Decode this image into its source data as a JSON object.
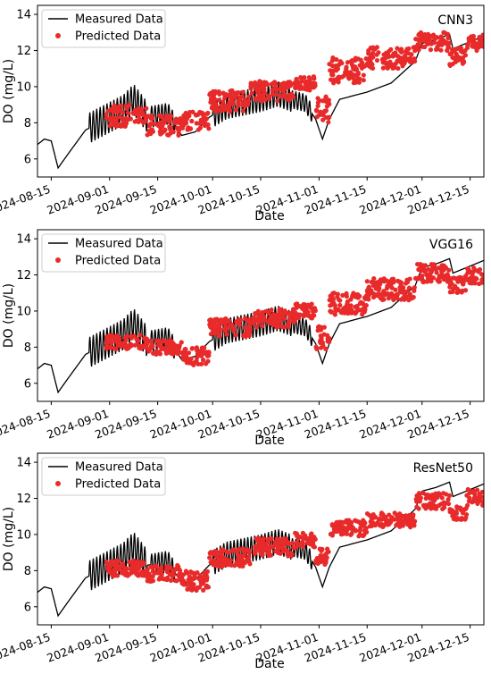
{
  "chart_data": [
    {
      "type": "line+scatter",
      "model_label": "CNN3",
      "xlabel": "Date",
      "ylabel": "DO (mg/L)",
      "xlim": [
        "2024-08-11",
        "2024-12-19"
      ],
      "ylim": [
        5,
        14.5
      ],
      "x_ticks": [
        "2024-08-15",
        "2024-09-01",
        "2024-09-15",
        "2024-10-01",
        "2024-10-15",
        "2024-11-01",
        "2024-11-15",
        "2024-12-01",
        "2024-12-15"
      ],
      "y_ticks": [
        6,
        8,
        10,
        12,
        14
      ],
      "legend": [
        "Measured Data",
        "Predicted Data"
      ],
      "legend_position": "upper-left",
      "grid": false,
      "colors": {
        "measured": "#000000",
        "predicted": "#e82a2a"
      },
      "predicted_bands": [
        {
          "x": [
            "2024-08-31",
            "2024-09-07"
          ],
          "y": [
            7.8,
            9.0
          ]
        },
        {
          "x": [
            "2024-09-07",
            "2024-09-12"
          ],
          "y": [
            8.0,
            8.8
          ]
        },
        {
          "x": [
            "2024-09-12",
            "2024-09-22"
          ],
          "y": [
            7.3,
            8.4
          ]
        },
        {
          "x": [
            "2024-09-22",
            "2024-09-30"
          ],
          "y": [
            7.6,
            8.6
          ]
        },
        {
          "x": [
            "2024-09-30",
            "2024-10-12"
          ],
          "y": [
            8.6,
            9.8
          ]
        },
        {
          "x": [
            "2024-10-12",
            "2024-10-25"
          ],
          "y": [
            9.2,
            10.3
          ]
        },
        {
          "x": [
            "2024-10-25",
            "2024-10-31"
          ],
          "y": [
            9.8,
            10.6
          ]
        },
        {
          "x": [
            "2024-10-31",
            "2024-11-04"
          ],
          "y": [
            8.0,
            9.5
          ]
        },
        {
          "x": [
            "2024-11-04",
            "2024-11-15"
          ],
          "y": [
            10.2,
            11.6
          ]
        },
        {
          "x": [
            "2024-11-15",
            "2024-11-29"
          ],
          "y": [
            11.0,
            12.2
          ]
        },
        {
          "x": [
            "2024-11-29",
            "2024-12-09"
          ],
          "y": [
            12.0,
            13.0
          ]
        },
        {
          "x": [
            "2024-12-09",
            "2024-12-14"
          ],
          "y": [
            11.0,
            12.2
          ]
        },
        {
          "x": [
            "2024-12-14",
            "2024-12-19"
          ],
          "y": [
            12.0,
            12.9
          ]
        }
      ]
    },
    {
      "type": "line+scatter",
      "model_label": "VGG16",
      "xlabel": "Date",
      "ylabel": "DO (mg/L)",
      "xlim": [
        "2024-08-11",
        "2024-12-19"
      ],
      "ylim": [
        5,
        14.5
      ],
      "x_ticks": [
        "2024-08-15",
        "2024-09-01",
        "2024-09-15",
        "2024-10-01",
        "2024-10-15",
        "2024-11-01",
        "2024-11-15",
        "2024-12-01",
        "2024-12-15"
      ],
      "y_ticks": [
        6,
        8,
        10,
        12,
        14
      ],
      "legend": [
        "Measured Data",
        "Predicted Data"
      ],
      "legend_position": "upper-left",
      "grid": false,
      "colors": {
        "measured": "#000000",
        "predicted": "#e82a2a"
      },
      "predicted_bands": [
        {
          "x": [
            "2024-08-31",
            "2024-09-12"
          ],
          "y": [
            7.9,
            8.7
          ]
        },
        {
          "x": [
            "2024-09-12",
            "2024-09-22"
          ],
          "y": [
            7.6,
            8.4
          ]
        },
        {
          "x": [
            "2024-09-22",
            "2024-09-30"
          ],
          "y": [
            7.0,
            8.0
          ]
        },
        {
          "x": [
            "2024-09-30",
            "2024-10-12"
          ],
          "y": [
            8.6,
            9.6
          ]
        },
        {
          "x": [
            "2024-10-12",
            "2024-10-25"
          ],
          "y": [
            9.1,
            10.1
          ]
        },
        {
          "x": [
            "2024-10-25",
            "2024-10-31"
          ],
          "y": [
            9.6,
            10.4
          ]
        },
        {
          "x": [
            "2024-10-31",
            "2024-11-04"
          ],
          "y": [
            7.9,
            9.2
          ]
        },
        {
          "x": [
            "2024-11-04",
            "2024-11-15"
          ],
          "y": [
            9.8,
            11.0
          ]
        },
        {
          "x": [
            "2024-11-15",
            "2024-11-29"
          ],
          "y": [
            10.6,
            11.8
          ]
        },
        {
          "x": [
            "2024-11-29",
            "2024-12-09"
          ],
          "y": [
            11.6,
            12.6
          ]
        },
        {
          "x": [
            "2024-12-09",
            "2024-12-14"
          ],
          "y": [
            11.0,
            12.0
          ]
        },
        {
          "x": [
            "2024-12-14",
            "2024-12-19"
          ],
          "y": [
            11.5,
            12.4
          ]
        }
      ]
    },
    {
      "type": "line+scatter",
      "model_label": "ResNet50",
      "xlabel": "Date",
      "ylabel": "DO (mg/L)",
      "xlim": [
        "2024-08-11",
        "2024-12-19"
      ],
      "ylim": [
        5,
        14.5
      ],
      "x_ticks": [
        "2024-08-15",
        "2024-09-01",
        "2024-09-15",
        "2024-10-01",
        "2024-10-15",
        "2024-11-01",
        "2024-11-15",
        "2024-12-01",
        "2024-12-15"
      ],
      "y_ticks": [
        6,
        8,
        10,
        12,
        14
      ],
      "legend": [
        "Measured Data",
        "Predicted Data"
      ],
      "legend_position": "upper-left",
      "grid": false,
      "colors": {
        "measured": "#000000",
        "predicted": "#e82a2a"
      },
      "predicted_bands": [
        {
          "x": [
            "2024-08-31",
            "2024-09-12"
          ],
          "y": [
            7.7,
            8.6
          ]
        },
        {
          "x": [
            "2024-09-12",
            "2024-09-22"
          ],
          "y": [
            7.4,
            8.3
          ]
        },
        {
          "x": [
            "2024-09-22",
            "2024-09-30"
          ],
          "y": [
            6.9,
            8.0
          ]
        },
        {
          "x": [
            "2024-09-30",
            "2024-10-12"
          ],
          "y": [
            8.2,
            9.2
          ]
        },
        {
          "x": [
            "2024-10-12",
            "2024-10-25"
          ],
          "y": [
            8.8,
            9.8
          ]
        },
        {
          "x": [
            "2024-10-25",
            "2024-10-31"
          ],
          "y": [
            9.3,
            10.1
          ]
        },
        {
          "x": [
            "2024-10-31",
            "2024-11-04"
          ],
          "y": [
            8.3,
            9.2
          ]
        },
        {
          "x": [
            "2024-11-04",
            "2024-11-15"
          ],
          "y": [
            9.9,
            10.8
          ]
        },
        {
          "x": [
            "2024-11-15",
            "2024-11-29"
          ],
          "y": [
            10.4,
            11.2
          ]
        },
        {
          "x": [
            "2024-11-29",
            "2024-12-09"
          ],
          "y": [
            11.4,
            12.3
          ]
        },
        {
          "x": [
            "2024-12-09",
            "2024-12-14"
          ],
          "y": [
            10.8,
            11.6
          ]
        },
        {
          "x": [
            "2024-12-14",
            "2024-12-19"
          ],
          "y": [
            11.6,
            12.5
          ]
        }
      ]
    }
  ],
  "measured_trend": [
    [
      "2024-08-11",
      6.8
    ],
    [
      "2024-08-13",
      7.1
    ],
    [
      "2024-08-15",
      7.0
    ],
    [
      "2024-08-17",
      5.5
    ],
    [
      "2024-08-20",
      6.3
    ],
    [
      "2024-08-25",
      7.6
    ],
    [
      "2024-08-31",
      8.2
    ],
    [
      "2024-09-05",
      8.7
    ],
    [
      "2024-09-08",
      9.3
    ],
    [
      "2024-09-12",
      8.3
    ],
    [
      "2024-09-18",
      8.5
    ],
    [
      "2024-09-22",
      7.3
    ],
    [
      "2024-09-26",
      7.5
    ],
    [
      "2024-09-30",
      8.3
    ],
    [
      "2024-10-05",
      8.9
    ],
    [
      "2024-10-10",
      9.1
    ],
    [
      "2024-10-15",
      9.3
    ],
    [
      "2024-10-20",
      9.6
    ],
    [
      "2024-10-24",
      9.3
    ],
    [
      "2024-10-28",
      9.1
    ],
    [
      "2024-10-31",
      8.2
    ],
    [
      "2024-11-02",
      7.1
    ],
    [
      "2024-11-04",
      8.2
    ],
    [
      "2024-11-07",
      9.3
    ],
    [
      "2024-11-15",
      9.7
    ],
    [
      "2024-11-22",
      10.2
    ],
    [
      "2024-11-29",
      11.4
    ],
    [
      "2024-12-01",
      12.4
    ],
    [
      "2024-12-05",
      12.6
    ],
    [
      "2024-12-09",
      12.9
    ],
    [
      "2024-12-10",
      12.1
    ],
    [
      "2024-12-19",
      12.8
    ]
  ],
  "measured_oscillation": [
    {
      "x": [
        "2024-08-26",
        "2024-09-12"
      ],
      "amplitude": 0.85
    },
    {
      "x": [
        "2024-09-13",
        "2024-09-20"
      ],
      "amplitude": 0.6
    },
    {
      "x": [
        "2024-10-01",
        "2024-10-24"
      ],
      "amplitude": 0.7
    },
    {
      "x": [
        "2024-10-24",
        "2024-10-30"
      ],
      "amplitude": 0.5
    }
  ]
}
